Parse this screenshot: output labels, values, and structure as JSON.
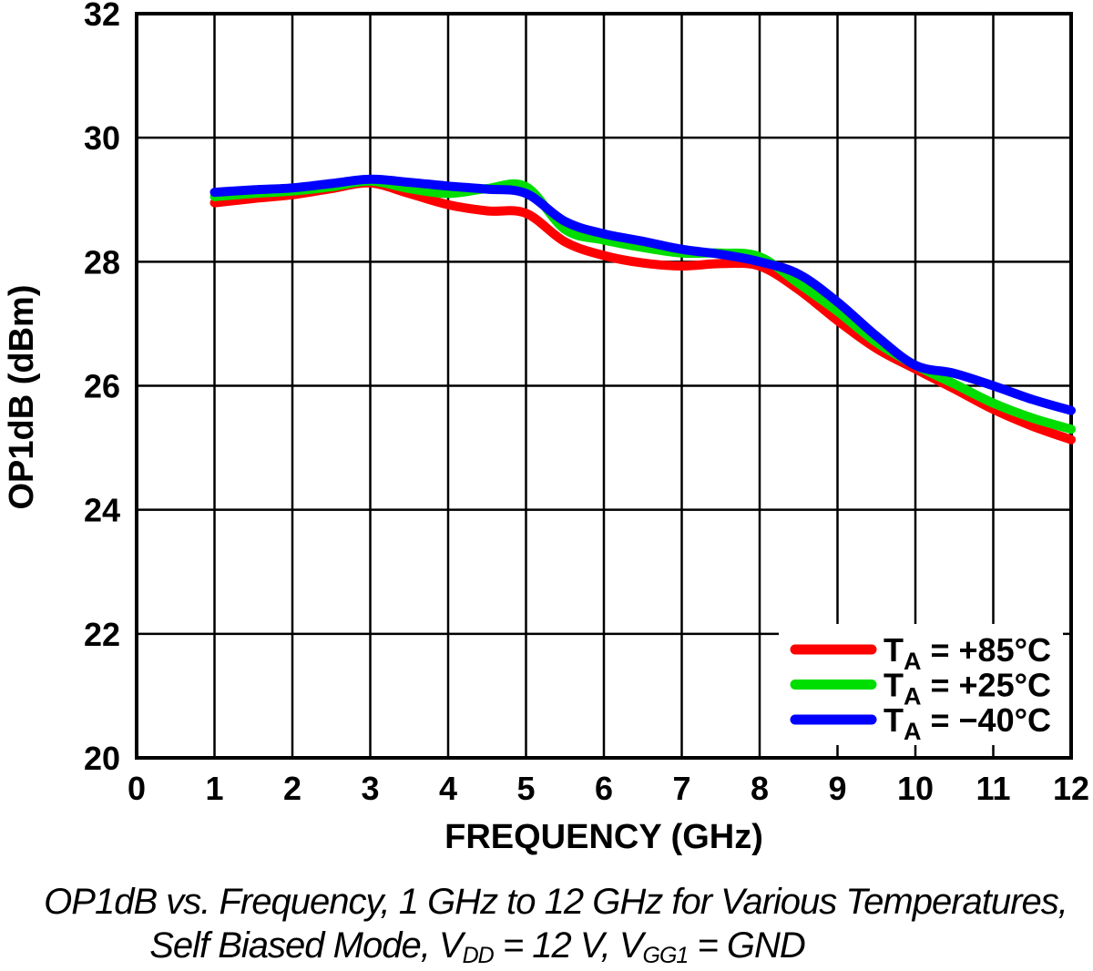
{
  "chart_data": {
    "type": "line",
    "title": "",
    "xlabel": "FREQUENCY (GHz)",
    "ylabel": "OP1dB (dBm)",
    "xlim": [
      0,
      12
    ],
    "ylim": [
      20,
      32
    ],
    "xticks": [
      0,
      1,
      2,
      3,
      4,
      5,
      6,
      7,
      8,
      9,
      10,
      11,
      12
    ],
    "yticks": [
      20,
      22,
      24,
      26,
      28,
      30,
      32
    ],
    "grid": true,
    "grid_color": "#000000",
    "legend_position": "lower right",
    "x": [
      1,
      1.5,
      2,
      2.5,
      3,
      3.5,
      4,
      4.5,
      5,
      5.5,
      6,
      6.5,
      7,
      7.5,
      8,
      8.5,
      9,
      9.5,
      10,
      10.5,
      11,
      11.5,
      12
    ],
    "series": [
      {
        "id": "ta-plus-85c",
        "name": "TA = +85°C",
        "label_t": "T",
        "label_sub": "A",
        "label_rest": " = +85°C",
        "color": "#ff0000",
        "values": [
          28.95,
          29.02,
          29.08,
          29.18,
          29.27,
          29.1,
          28.92,
          28.82,
          28.78,
          28.32,
          28.1,
          27.98,
          27.93,
          27.97,
          27.93,
          27.55,
          27.05,
          26.6,
          26.27,
          25.95,
          25.62,
          25.35,
          25.13
        ]
      },
      {
        "id": "ta-plus-25c",
        "name": "TA = +25°C",
        "label_t": "T",
        "label_sub": "A",
        "label_rest": " = +25°C",
        "color": "#00dd00",
        "values": [
          29.05,
          29.1,
          29.14,
          29.21,
          29.3,
          29.18,
          29.1,
          29.18,
          29.21,
          28.52,
          28.35,
          28.23,
          28.14,
          28.14,
          28.08,
          27.65,
          27.2,
          26.7,
          26.33,
          26.03,
          25.72,
          25.48,
          25.3
        ]
      },
      {
        "id": "ta-minus-40c",
        "name": "TA = −40°C",
        "label_t": "T",
        "label_sub": "A",
        "label_rest": " = −40°C",
        "color": "#0000ff",
        "values": [
          29.12,
          29.16,
          29.19,
          29.26,
          29.33,
          29.28,
          29.22,
          29.17,
          29.1,
          28.65,
          28.45,
          28.33,
          28.2,
          28.12,
          28.0,
          27.8,
          27.35,
          26.8,
          26.33,
          26.2,
          26.0,
          25.78,
          25.6
        ]
      }
    ]
  },
  "caption": {
    "line1": "OP1dB vs. Frequency, 1 GHz to 12 GHz for Various Temperatures,",
    "line2_p1": "Self Biased Mode, V",
    "line2_s1": "DD",
    "line2_p2": " = 12 V, V",
    "line2_s2": "GG1",
    "line2_p3": " = GND"
  }
}
